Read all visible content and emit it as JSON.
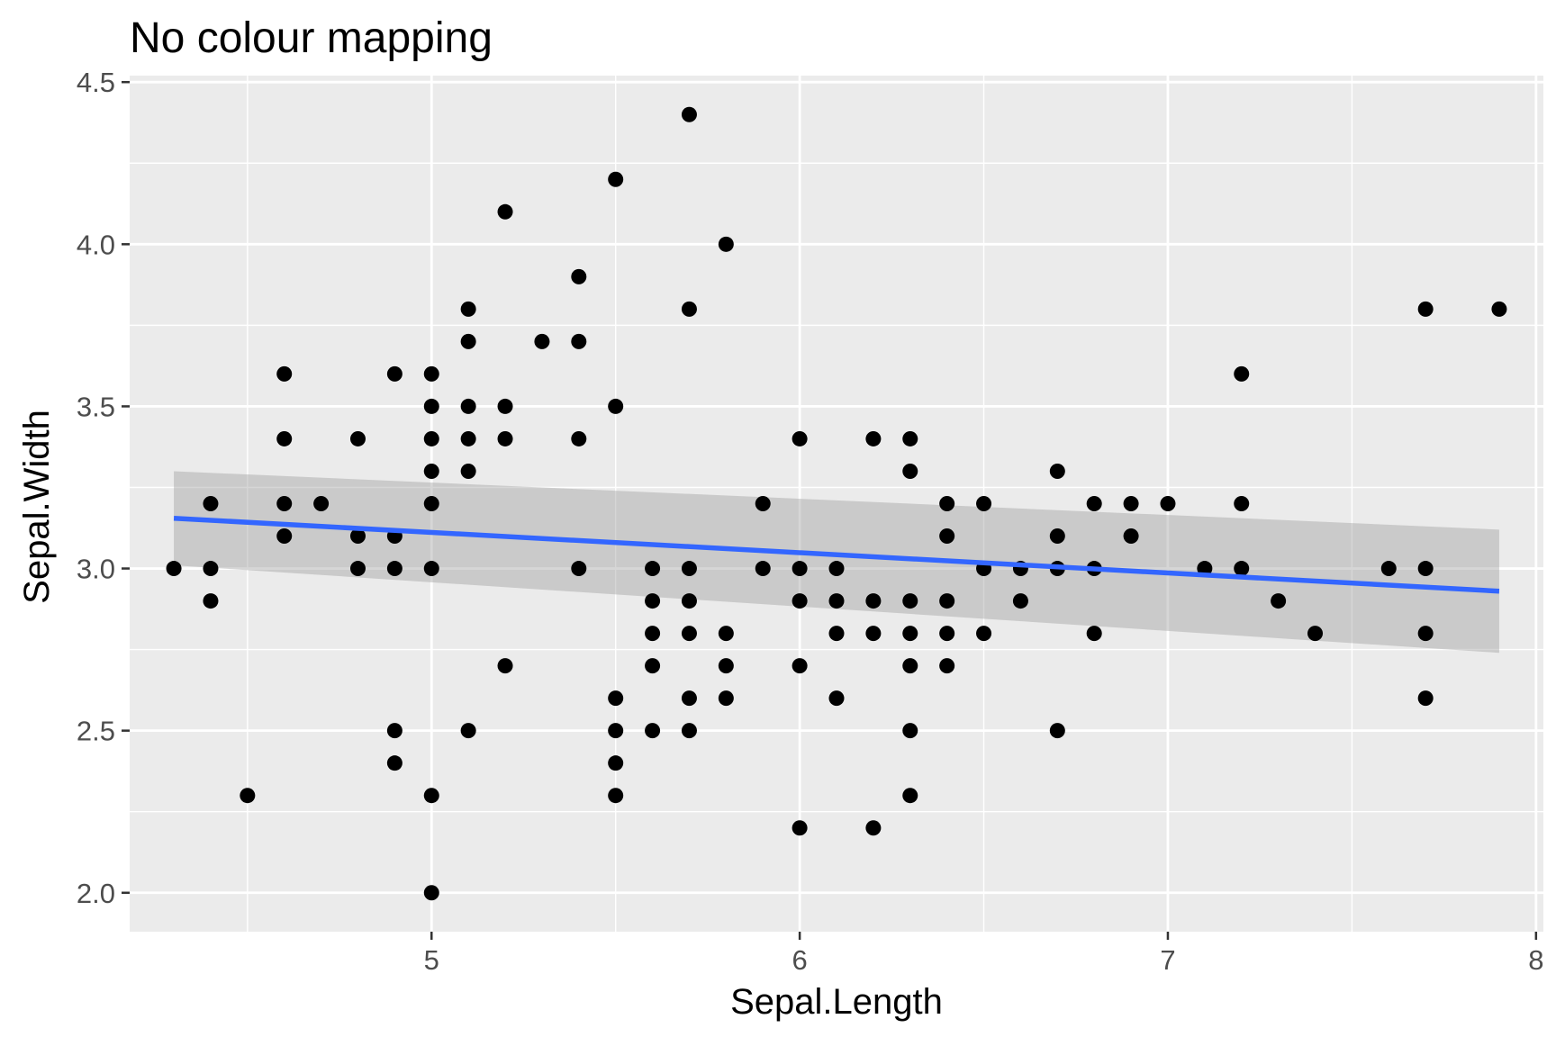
{
  "chart_data": {
    "type": "scatter",
    "title": "No colour mapping",
    "xlabel": "Sepal.Length",
    "ylabel": "Sepal.Width",
    "xlim": [
      4.18,
      8.02
    ],
    "ylim": [
      1.88,
      4.52
    ],
    "x_ticks": [
      5,
      6,
      7,
      8
    ],
    "x_tick_labels": [
      "5",
      "6",
      "7",
      "8"
    ],
    "x_minor_ticks": [
      4.5,
      5.5,
      6.5,
      7.5
    ],
    "y_ticks": [
      2.0,
      2.5,
      3.0,
      3.5,
      4.0,
      4.5
    ],
    "y_tick_labels": [
      "2.0",
      "2.5",
      "3.0",
      "3.5",
      "4.0",
      "4.5"
    ],
    "y_minor_ticks": [
      2.25,
      2.75,
      3.25,
      3.75,
      4.25
    ],
    "grid": true,
    "colors": {
      "panel": "#ebebeb",
      "grid": "#ffffff",
      "point": "#000000",
      "trend_line": "#3366ff",
      "ribbon": "#999999"
    },
    "points": [
      [
        4.3,
        3.0
      ],
      [
        4.4,
        3.2
      ],
      [
        4.4,
        3.0
      ],
      [
        4.4,
        2.9
      ],
      [
        4.5,
        2.3
      ],
      [
        4.6,
        3.6
      ],
      [
        4.6,
        3.4
      ],
      [
        4.6,
        3.2
      ],
      [
        4.6,
        3.1
      ],
      [
        4.7,
        3.2
      ],
      [
        4.8,
        3.4
      ],
      [
        4.8,
        3.1
      ],
      [
        4.8,
        3.0
      ],
      [
        4.9,
        3.6
      ],
      [
        4.9,
        3.1
      ],
      [
        4.9,
        3.0
      ],
      [
        4.9,
        2.5
      ],
      [
        4.9,
        2.4
      ],
      [
        5.0,
        3.6
      ],
      [
        5.0,
        3.5
      ],
      [
        5.0,
        3.4
      ],
      [
        5.0,
        3.3
      ],
      [
        5.0,
        3.2
      ],
      [
        5.0,
        3.0
      ],
      [
        5.0,
        2.3
      ],
      [
        5.0,
        2.0
      ],
      [
        5.1,
        3.8
      ],
      [
        5.1,
        3.7
      ],
      [
        5.1,
        3.5
      ],
      [
        5.1,
        3.4
      ],
      [
        5.1,
        3.3
      ],
      [
        5.1,
        2.5
      ],
      [
        5.2,
        4.1
      ],
      [
        5.2,
        3.5
      ],
      [
        5.2,
        3.4
      ],
      [
        5.2,
        2.7
      ],
      [
        5.3,
        3.7
      ],
      [
        5.4,
        3.9
      ],
      [
        5.4,
        3.7
      ],
      [
        5.4,
        3.4
      ],
      [
        5.4,
        3.0
      ],
      [
        5.5,
        4.2
      ],
      [
        5.5,
        3.5
      ],
      [
        5.5,
        2.6
      ],
      [
        5.5,
        2.5
      ],
      [
        5.5,
        2.4
      ],
      [
        5.5,
        2.3
      ],
      [
        5.6,
        3.0
      ],
      [
        5.6,
        2.9
      ],
      [
        5.6,
        2.8
      ],
      [
        5.6,
        2.7
      ],
      [
        5.6,
        2.5
      ],
      [
        5.7,
        4.4
      ],
      [
        5.7,
        3.8
      ],
      [
        5.7,
        3.0
      ],
      [
        5.7,
        2.9
      ],
      [
        5.7,
        2.8
      ],
      [
        5.7,
        2.6
      ],
      [
        5.7,
        2.5
      ],
      [
        5.8,
        4.0
      ],
      [
        5.8,
        2.8
      ],
      [
        5.8,
        2.7
      ],
      [
        5.8,
        2.6
      ],
      [
        5.9,
        3.2
      ],
      [
        5.9,
        3.0
      ],
      [
        6.0,
        3.4
      ],
      [
        6.0,
        3.0
      ],
      [
        6.0,
        2.9
      ],
      [
        6.0,
        2.7
      ],
      [
        6.0,
        2.2
      ],
      [
        6.1,
        3.0
      ],
      [
        6.1,
        2.9
      ],
      [
        6.1,
        2.8
      ],
      [
        6.1,
        2.6
      ],
      [
        6.2,
        3.4
      ],
      [
        6.2,
        2.9
      ],
      [
        6.2,
        2.8
      ],
      [
        6.2,
        2.2
      ],
      [
        6.3,
        3.4
      ],
      [
        6.3,
        3.3
      ],
      [
        6.3,
        2.9
      ],
      [
        6.3,
        2.8
      ],
      [
        6.3,
        2.7
      ],
      [
        6.3,
        2.5
      ],
      [
        6.3,
        2.3
      ],
      [
        6.4,
        3.2
      ],
      [
        6.4,
        3.1
      ],
      [
        6.4,
        2.9
      ],
      [
        6.4,
        2.8
      ],
      [
        6.4,
        2.7
      ],
      [
        6.5,
        3.2
      ],
      [
        6.5,
        3.0
      ],
      [
        6.5,
        2.8
      ],
      [
        6.6,
        3.0
      ],
      [
        6.6,
        2.9
      ],
      [
        6.7,
        3.3
      ],
      [
        6.7,
        3.1
      ],
      [
        6.7,
        3.0
      ],
      [
        6.7,
        2.5
      ],
      [
        6.8,
        3.2
      ],
      [
        6.8,
        3.0
      ],
      [
        6.8,
        2.8
      ],
      [
        6.9,
        3.2
      ],
      [
        6.9,
        3.1
      ],
      [
        7.0,
        3.2
      ],
      [
        7.1,
        3.0
      ],
      [
        7.2,
        3.6
      ],
      [
        7.2,
        3.2
      ],
      [
        7.2,
        3.0
      ],
      [
        7.3,
        2.9
      ],
      [
        7.4,
        2.8
      ],
      [
        7.6,
        3.0
      ],
      [
        7.7,
        3.8
      ],
      [
        7.7,
        3.0
      ],
      [
        7.7,
        2.8
      ],
      [
        7.7,
        2.6
      ],
      [
        7.9,
        3.8
      ]
    ],
    "trend": {
      "method": "linear",
      "x": [
        4.3,
        7.9
      ],
      "y": [
        3.155,
        2.93
      ],
      "ribbon_upper": [
        3.3,
        3.12
      ],
      "ribbon_lower": [
        3.01,
        2.74
      ]
    }
  }
}
